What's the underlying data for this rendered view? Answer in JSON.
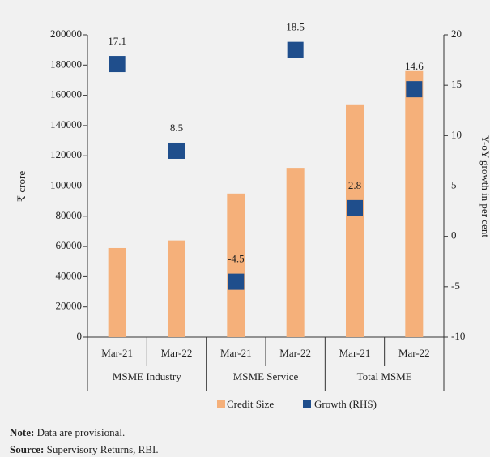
{
  "chart_data": {
    "type": "bar_line",
    "categories": [
      "Mar-21",
      "Mar-22",
      "Mar-21",
      "Mar-22",
      "Mar-21",
      "Mar-22"
    ],
    "groups": [
      "MSME Industry",
      "MSME Service",
      "Total MSME"
    ],
    "series": [
      {
        "name": "Credit Size",
        "color": "#f5b07a",
        "values": [
          59000,
          64000,
          95000,
          112000,
          154000,
          176000
        ]
      },
      {
        "name": "Growth (RHS)",
        "color": "#1f4e8c",
        "axis": "y2",
        "values": [
          17.1,
          8.5,
          -4.5,
          18.5,
          2.8,
          14.6
        ]
      }
    ],
    "ylabel": "₹ crore",
    "y2label": "Y-oY growth in per cent",
    "ylim": [
      0,
      200000
    ],
    "yticks": [
      0,
      20000,
      40000,
      60000,
      80000,
      100000,
      120000,
      140000,
      160000,
      180000,
      200000
    ],
    "y2lim": [
      -10,
      20
    ],
    "y2ticks": [
      -10,
      -5,
      0,
      5,
      10,
      15,
      20
    ]
  },
  "note": {
    "label": "Note:",
    "text": "Data are provisional."
  },
  "source": {
    "label": "Source:",
    "text": "Supervisory Returns, RBI."
  }
}
